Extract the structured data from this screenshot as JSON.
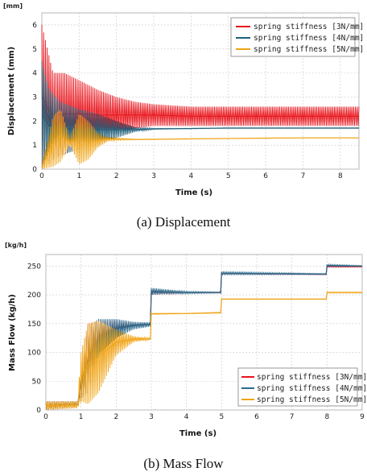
{
  "chart_data": [
    {
      "type": "line",
      "unit_label": "[mm]",
      "xlabel": "Time (s)",
      "ylabel": "Displacement (mm)",
      "xlim": [
        0,
        8.5
      ],
      "ylim": [
        0,
        6.5
      ],
      "x_ticks": [
        0,
        1,
        2,
        3,
        4,
        5,
        6,
        7,
        8
      ],
      "y_ticks": [
        0,
        1,
        2,
        3,
        4,
        5,
        6
      ],
      "grid": true,
      "legend_position": "top-right",
      "caption": "(a)  Displacement",
      "series": [
        {
          "name": "spring stiffness [3N/mm]",
          "color": "#e8141c",
          "x": [
            0,
            0.3,
            0.6,
            1.0,
            1.5,
            2.0,
            2.5,
            3.0,
            4.0,
            5.0,
            6.0,
            7.0,
            8.0,
            8.5
          ],
          "upper": [
            6.0,
            4.0,
            4.0,
            3.7,
            3.3,
            3.0,
            2.8,
            2.7,
            2.6,
            2.6,
            2.6,
            2.6,
            2.6,
            2.6
          ],
          "lower": [
            0,
            0.4,
            0.6,
            0.9,
            1.2,
            1.5,
            1.7,
            1.8,
            1.8,
            1.8,
            1.8,
            1.8,
            1.8,
            1.8
          ]
        },
        {
          "name": "spring stiffness [4N/mm]",
          "color": "#1f5f7a",
          "x": [
            0,
            0.2,
            0.5,
            1.0,
            1.5,
            2.0,
            2.5,
            3.0,
            4.0,
            5.0,
            6.0,
            7.0,
            8.0,
            8.5
          ],
          "upper": [
            4.5,
            3.3,
            2.8,
            2.5,
            2.3,
            2.0,
            1.75,
            1.7,
            1.7,
            1.72,
            1.72,
            1.72,
            1.72,
            1.72
          ],
          "lower": [
            0,
            0.3,
            0.6,
            0.8,
            1.0,
            1.3,
            1.55,
            1.65,
            1.68,
            1.7,
            1.7,
            1.7,
            1.7,
            1.7
          ]
        },
        {
          "name": "spring stiffness [5N/mm]",
          "color": "#f0a418",
          "x": [
            0,
            0.3,
            0.5,
            0.75,
            1.0,
            1.25,
            1.5,
            1.75,
            2.0,
            2.5,
            3.0,
            4.0,
            5.0,
            6.0,
            7.0,
            8.0,
            8.5
          ],
          "upper": [
            0.2,
            2.2,
            2.5,
            1.3,
            2.3,
            2.0,
            1.5,
            1.35,
            1.3,
            1.25,
            1.25,
            1.27,
            1.28,
            1.3,
            1.3,
            1.3,
            1.3
          ],
          "lower": [
            0,
            0.1,
            0.3,
            1.0,
            0.2,
            0.4,
            0.9,
            1.15,
            1.2,
            1.22,
            1.23,
            1.25,
            1.27,
            1.28,
            1.3,
            1.3,
            1.3
          ]
        }
      ]
    },
    {
      "type": "line",
      "unit_label": "[kg/h]",
      "xlabel": "Time (s)",
      "ylabel": "Mass Flow (kg/h)",
      "xlim": [
        0,
        9
      ],
      "ylim": [
        0,
        270
      ],
      "x_ticks": [
        0,
        1,
        2,
        3,
        4,
        5,
        6,
        7,
        8,
        9
      ],
      "y_ticks": [
        0,
        50,
        100,
        150,
        200,
        250
      ],
      "grid": true,
      "legend_position": "bottom-right",
      "caption": "(b)  Mass Flow",
      "series": [
        {
          "name": "spring stiffness [3N/mm]",
          "color": "#e8141c",
          "x": [
            0,
            0.9,
            1.0,
            1.2,
            1.5,
            2.0,
            2.5,
            2.99,
            3.0,
            4.0,
            4.99,
            5.0,
            7.99,
            8.0,
            9.0
          ],
          "upper": [
            15,
            15,
            60,
            150,
            155,
            155,
            150,
            150,
            210,
            205,
            205,
            238,
            236,
            250,
            250
          ],
          "lower": [
            0,
            5,
            20,
            30,
            100,
            130,
            145,
            148,
            200,
            203,
            203,
            236,
            235,
            248,
            248
          ]
        },
        {
          "name": "spring stiffness [4N/mm]",
          "color": "#2a6a8c",
          "x": [
            0,
            0.9,
            1.0,
            1.2,
            1.5,
            2.0,
            2.5,
            2.99,
            3.0,
            4.0,
            4.99,
            5.0,
            7.99,
            8.0,
            9.0
          ],
          "upper": [
            15,
            15,
            60,
            145,
            158,
            158,
            153,
            152,
            212,
            206,
            205,
            240,
            237,
            253,
            251
          ],
          "lower": [
            0,
            5,
            20,
            30,
            95,
            125,
            140,
            145,
            200,
            202,
            203,
            235,
            235,
            249,
            249
          ]
        },
        {
          "name": "spring stiffness [5N/mm]",
          "color": "#f0a418",
          "x": [
            0,
            0.9,
            1.0,
            1.2,
            1.5,
            2.0,
            2.5,
            2.99,
            3.0,
            4.0,
            4.99,
            5.0,
            7.99,
            8.0,
            9.0
          ],
          "upper": [
            15,
            15,
            100,
            150,
            155,
            140,
            128,
            125,
            168,
            168,
            170,
            193,
            193,
            205,
            205
          ],
          "lower": [
            0,
            3,
            15,
            10,
            30,
            95,
            118,
            122,
            166,
            167,
            168,
            192,
            192,
            203,
            203
          ]
        }
      ]
    }
  ]
}
